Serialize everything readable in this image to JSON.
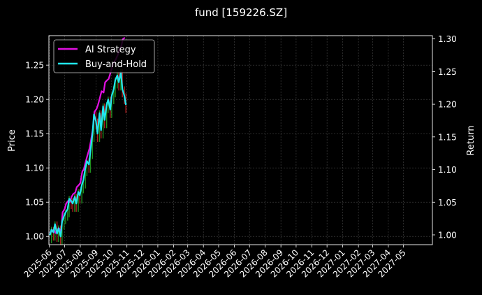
{
  "chart_data": {
    "type": "line",
    "title": "fund [159226.SZ]",
    "ylabel_left": "Price",
    "ylabel_right": "Return",
    "xlabel": "",
    "grid": true,
    "legend_position": "top-left",
    "background_color": "#000000",
    "axes_color": "#000000",
    "x_range": [
      "2025-05-31",
      "2027-06-27"
    ],
    "ylim_left": [
      0.988,
      1.293
    ],
    "ylim_right": [
      0.985,
      1.305
    ],
    "yticks_left": [
      "1.00",
      "1.05",
      "1.10",
      "1.15",
      "1.20",
      "1.25"
    ],
    "yticks_right": [
      "1.00",
      "1.05",
      "1.10",
      "1.15",
      "1.20",
      "1.25",
      "1.30"
    ],
    "xticks": [
      "2025-06",
      "2025-07",
      "2025-08",
      "2025-09",
      "2025-10",
      "2025-11",
      "2025-12",
      "2026-01",
      "2026-02",
      "2026-03",
      "2026-04",
      "2026-05",
      "2026-06",
      "2026-07",
      "2026-08",
      "2026-09",
      "2026-10",
      "2026-11",
      "2026-12",
      "2027-01",
      "2027-02",
      "2027-03",
      "2027-04",
      "2027-05"
    ],
    "series": [
      {
        "name": "AI Strategy",
        "color": "#e010e0",
        "x": [
          "2025-06-02",
          "2025-06-06",
          "2025-06-10",
          "2025-06-13",
          "2025-06-17",
          "2025-06-20",
          "2025-06-24",
          "2025-06-27",
          "2025-07-01",
          "2025-07-04",
          "2025-07-08",
          "2025-07-11",
          "2025-07-15",
          "2025-07-18",
          "2025-07-22",
          "2025-07-25",
          "2025-07-29",
          "2025-08-01",
          "2025-08-05",
          "2025-08-08",
          "2025-08-12",
          "2025-08-15",
          "2025-08-19",
          "2025-08-22",
          "2025-08-26",
          "2025-08-29",
          "2025-09-02",
          "2025-09-05",
          "2025-09-09",
          "2025-09-12",
          "2025-09-16",
          "2025-09-19",
          "2025-09-23",
          "2025-09-26",
          "2025-09-30",
          "2025-10-03",
          "2025-10-07",
          "2025-10-10",
          "2025-10-14",
          "2025-10-17",
          "2025-10-21",
          "2025-10-24",
          "2025-10-28"
        ],
        "values": [
          1.005,
          1.008,
          1.01,
          1.005,
          1.008,
          1.012,
          1.006,
          1.035,
          1.04,
          1.048,
          1.052,
          1.05,
          1.058,
          1.062,
          1.064,
          1.072,
          1.075,
          1.078,
          1.095,
          1.098,
          1.11,
          1.118,
          1.128,
          1.14,
          1.158,
          1.182,
          1.186,
          1.192,
          1.203,
          1.212,
          1.21,
          1.225,
          1.228,
          1.23,
          1.24,
          1.248,
          1.255,
          1.258,
          1.265,
          1.272,
          1.278,
          1.288,
          1.29
        ]
      },
      {
        "name": "Buy-and-Hold",
        "color": "#20e8f0",
        "x": [
          "2025-06-02",
          "2025-06-05",
          "2025-06-09",
          "2025-06-12",
          "2025-06-16",
          "2025-06-19",
          "2025-06-23",
          "2025-06-26",
          "2025-06-30",
          "2025-07-03",
          "2025-07-07",
          "2025-07-10",
          "2025-07-14",
          "2025-07-17",
          "2025-07-21",
          "2025-07-24",
          "2025-07-28",
          "2025-07-31",
          "2025-08-04",
          "2025-08-07",
          "2025-08-11",
          "2025-08-14",
          "2025-08-18",
          "2025-08-21",
          "2025-08-25",
          "2025-08-28",
          "2025-09-01",
          "2025-09-04",
          "2025-09-08",
          "2025-09-11",
          "2025-09-15",
          "2025-09-18",
          "2025-09-22",
          "2025-09-25",
          "2025-09-29",
          "2025-10-02",
          "2025-10-06",
          "2025-10-09",
          "2025-10-13",
          "2025-10-16",
          "2025-10-20",
          "2025-10-23",
          "2025-10-27",
          "2025-10-30"
        ],
        "values": [
          1.002,
          1.01,
          1.006,
          1.018,
          1.004,
          1.012,
          1.0,
          1.022,
          1.03,
          1.035,
          1.04,
          1.055,
          1.052,
          1.048,
          1.058,
          1.048,
          1.065,
          1.06,
          1.075,
          1.082,
          1.1,
          1.11,
          1.105,
          1.125,
          1.15,
          1.178,
          1.168,
          1.15,
          1.18,
          1.155,
          1.19,
          1.17,
          1.192,
          1.2,
          1.185,
          1.205,
          1.215,
          1.228,
          1.235,
          1.225,
          1.24,
          1.215,
          1.205,
          1.192
        ]
      }
    ]
  }
}
